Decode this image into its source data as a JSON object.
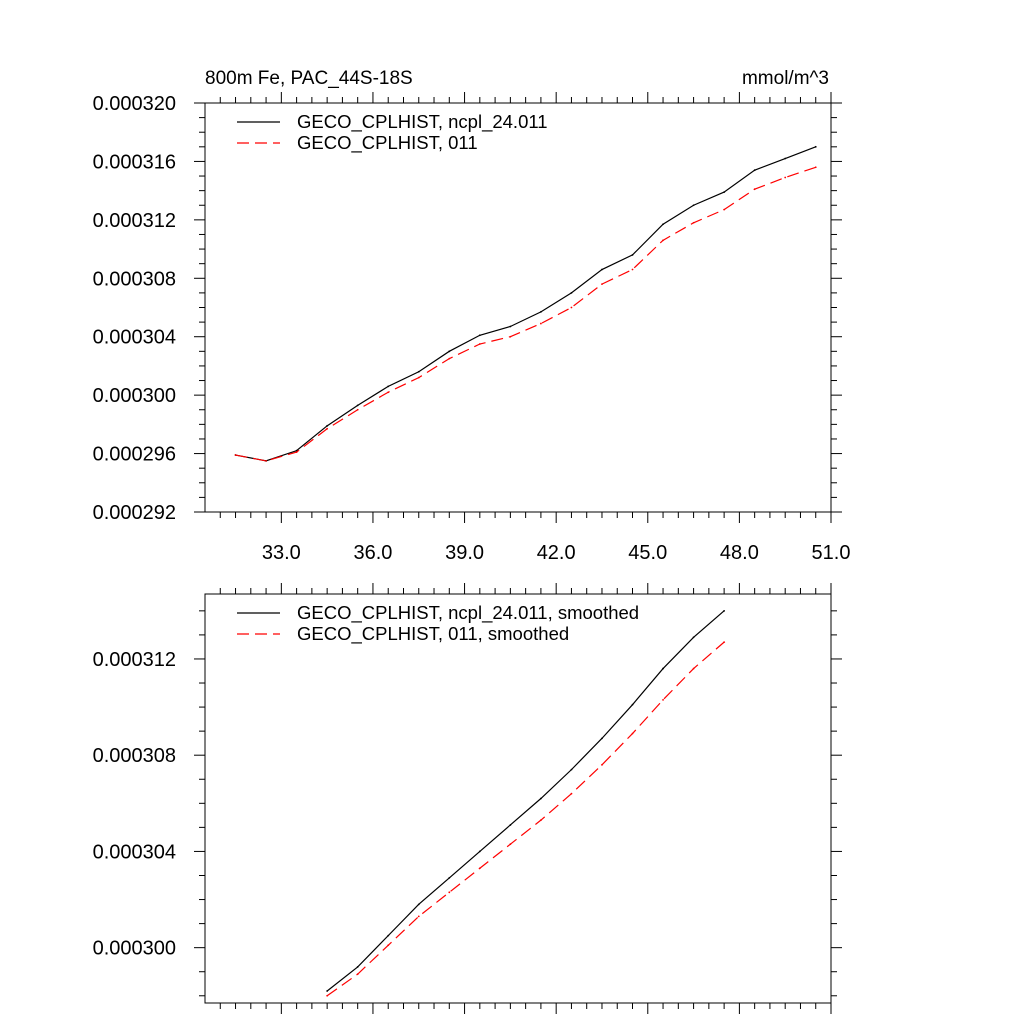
{
  "chart_data": [
    {
      "type": "line",
      "title": "800m Fe, PAC_44S-18S",
      "units": "mmol/m^3",
      "xlim": [
        30.5,
        51.0
      ],
      "ylim": [
        0.000292,
        0.00032
      ],
      "x_ticks": [
        "33.0",
        "36.0",
        "39.0",
        "42.0",
        "45.0",
        "48.0",
        "51.0"
      ],
      "y_ticks": [
        "0.000292",
        "0.000296",
        "0.000300",
        "0.000304",
        "0.000308",
        "0.000312",
        "0.000316",
        "0.000320"
      ],
      "grid": false,
      "legend_position": "top-left",
      "x": [
        31.5,
        32.5,
        33.5,
        34.5,
        35.5,
        36.5,
        37.5,
        38.5,
        39.5,
        40.5,
        41.5,
        42.5,
        43.5,
        44.5,
        45.5,
        46.5,
        47.5,
        48.5,
        49.5,
        50.5
      ],
      "series": [
        {
          "name": "GECO_CPLHIST, ncpl_24.011",
          "color": "#000000",
          "dash": "solid",
          "values": [
            0.0002959,
            0.0002955,
            0.0002962,
            0.0002979,
            0.0002993,
            0.0003006,
            0.0003016,
            0.000303,
            0.0003041,
            0.0003047,
            0.0003057,
            0.000307,
            0.0003086,
            0.0003096,
            0.0003117,
            0.000313,
            0.0003139,
            0.0003154,
            0.0003162,
            0.000317
          ]
        },
        {
          "name": "GECO_CPLHIST, 011",
          "color": "#ff0000",
          "dash": "dashed",
          "values": [
            0.0002959,
            0.0002955,
            0.0002961,
            0.0002977,
            0.000299,
            0.0003002,
            0.0003012,
            0.0003025,
            0.0003035,
            0.000304,
            0.0003049,
            0.000306,
            0.0003076,
            0.0003086,
            0.0003106,
            0.0003118,
            0.0003127,
            0.0003141,
            0.0003149,
            0.0003156
          ]
        }
      ]
    },
    {
      "type": "line",
      "xlim": [
        30.5,
        51.0
      ],
      "ylim": [
        0.0002977,
        0.0003147
      ],
      "y_ticks": [
        "0.000300",
        "0.000304",
        "0.000308",
        "0.000312"
      ],
      "grid": false,
      "legend_position": "top-left",
      "x": [
        34.5,
        35.5,
        36.5,
        37.5,
        38.5,
        39.5,
        40.5,
        41.5,
        42.5,
        43.5,
        44.5,
        45.5,
        46.5,
        47.5
      ],
      "series": [
        {
          "name": "GECO_CPLHIST, ncpl_24.011, smoothed",
          "color": "#000000",
          "dash": "solid",
          "values": [
            0.0002982,
            0.0002992,
            0.0003005,
            0.0003018,
            0.0003029,
            0.000304,
            0.0003051,
            0.0003062,
            0.0003074,
            0.0003087,
            0.0003101,
            0.0003116,
            0.0003129,
            0.000314
          ]
        },
        {
          "name": "GECO_CPLHIST, 011, smoothed",
          "color": "#ff0000",
          "dash": "dashed",
          "values": [
            0.000298,
            0.0002989,
            0.0003001,
            0.0003013,
            0.0003023,
            0.0003033,
            0.0003043,
            0.0003053,
            0.0003064,
            0.0003076,
            0.0003089,
            0.0003103,
            0.0003116,
            0.0003127
          ]
        }
      ]
    }
  ]
}
